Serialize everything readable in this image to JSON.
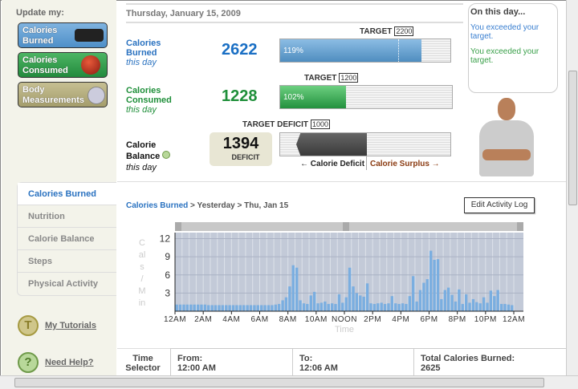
{
  "sidebar": {
    "update_label": "Update my:",
    "buttons": [
      {
        "label1": "Calories",
        "label2": "Burned",
        "color": "#5b9bd0"
      },
      {
        "label1": "Calories",
        "label2": "Consumed",
        "color": "#2f9a4a"
      },
      {
        "label1": "Body",
        "label2": "Measurements",
        "color": "#b1aa7a"
      }
    ],
    "tabs": [
      "Calories Burned",
      "Nutrition",
      "Calorie Balance",
      "Steps",
      "Physical Activity"
    ],
    "active_tab": "Calories Burned",
    "tutorials": {
      "icon": "T",
      "label": "My Tutorials"
    },
    "help": {
      "icon": "?",
      "label": "Need Help?"
    }
  },
  "summary": {
    "date": "Thursday, January 15, 2009",
    "burned": {
      "l1": "Calories",
      "l2": "Burned",
      "sub": "this day",
      "value": "2622",
      "target_label": "TARGET",
      "target": "2200",
      "pct": "119%",
      "color": "#1a6fc4"
    },
    "consumed": {
      "l1": "Calories",
      "l2": "Consumed",
      "sub": "this day",
      "value": "1228",
      "target_label": "TARGET",
      "target": "1200",
      "pct": "102%",
      "color": "#1f8f3a"
    },
    "balance": {
      "l1": "Calorie",
      "l2": "Balance",
      "sub": "this day",
      "value": "1394",
      "kind": "DEFICIT",
      "target_label": "TARGET DEFICIT",
      "target": "1000",
      "deficit_label": "Calorie Deficit",
      "surplus_label": "Calorie Surplus"
    }
  },
  "bubble": {
    "title": "On this day...",
    "msg1": "You exceeded your target.",
    "msg2": "You exceeded your target."
  },
  "breadcrumb": {
    "root": "Calories Burned",
    "sep1": " > ",
    "mid": "Yesterday",
    "sep2": " > ",
    "leaf": "Thu, Jan 15"
  },
  "edit_button": "Edit Activity Log",
  "chart_data": {
    "type": "bar",
    "ylabel": "Cals / Min",
    "xlabel": "Time",
    "ylim": [
      0,
      13
    ],
    "yticks": [
      3,
      6,
      9,
      12
    ],
    "xticks": [
      "12AM",
      "2AM",
      "4AM",
      "6AM",
      "8AM",
      "10AM",
      "NOON",
      "2PM",
      "4PM",
      "6PM",
      "8PM",
      "10PM",
      "12AM"
    ],
    "interval_minutes": 15,
    "values": [
      1.1,
      1.1,
      1.1,
      1.1,
      1.1,
      1.1,
      1.1,
      1.1,
      1.1,
      1.0,
      1.0,
      1.0,
      1.0,
      1.0,
      1.0,
      1.0,
      1.0,
      1.0,
      1.0,
      1.0,
      1.0,
      1.0,
      1.0,
      1.0,
      1.0,
      1.0,
      1.0,
      1.0,
      1.1,
      1.2,
      1.8,
      2.3,
      4.1,
      7.6,
      7.2,
      1.8,
      1.3,
      1.2,
      2.6,
      3.2,
      1.3,
      1.4,
      1.6,
      1.2,
      1.3,
      1.2,
      2.8,
      1.4,
      2.3,
      7.2,
      4.1,
      3.0,
      2.6,
      2.4,
      4.6,
      1.3,
      1.2,
      1.3,
      1.4,
      1.2,
      1.3,
      2.5,
      1.3,
      1.2,
      1.3,
      1.2,
      2.5,
      5.8,
      1.6,
      3.5,
      4.7,
      5.3,
      10.0,
      8.5,
      8.6,
      2.0,
      3.5,
      3.9,
      2.7,
      1.6,
      3.6,
      1.2,
      2.8,
      1.4,
      2.0,
      1.5,
      1.3,
      2.3,
      1.4,
      3.4,
      2.5,
      3.5,
      1.2,
      1.2,
      1.1,
      1.0
    ],
    "bar_color": "#7aaee0",
    "grid": true
  },
  "selector": {
    "label1": "Time",
    "label2": "Selector",
    "from_label": "From:",
    "from": "12:00 AM",
    "to_label": "To:",
    "to": "12:06 AM",
    "total_label": "Total Calories Burned:",
    "total": "2625"
  }
}
